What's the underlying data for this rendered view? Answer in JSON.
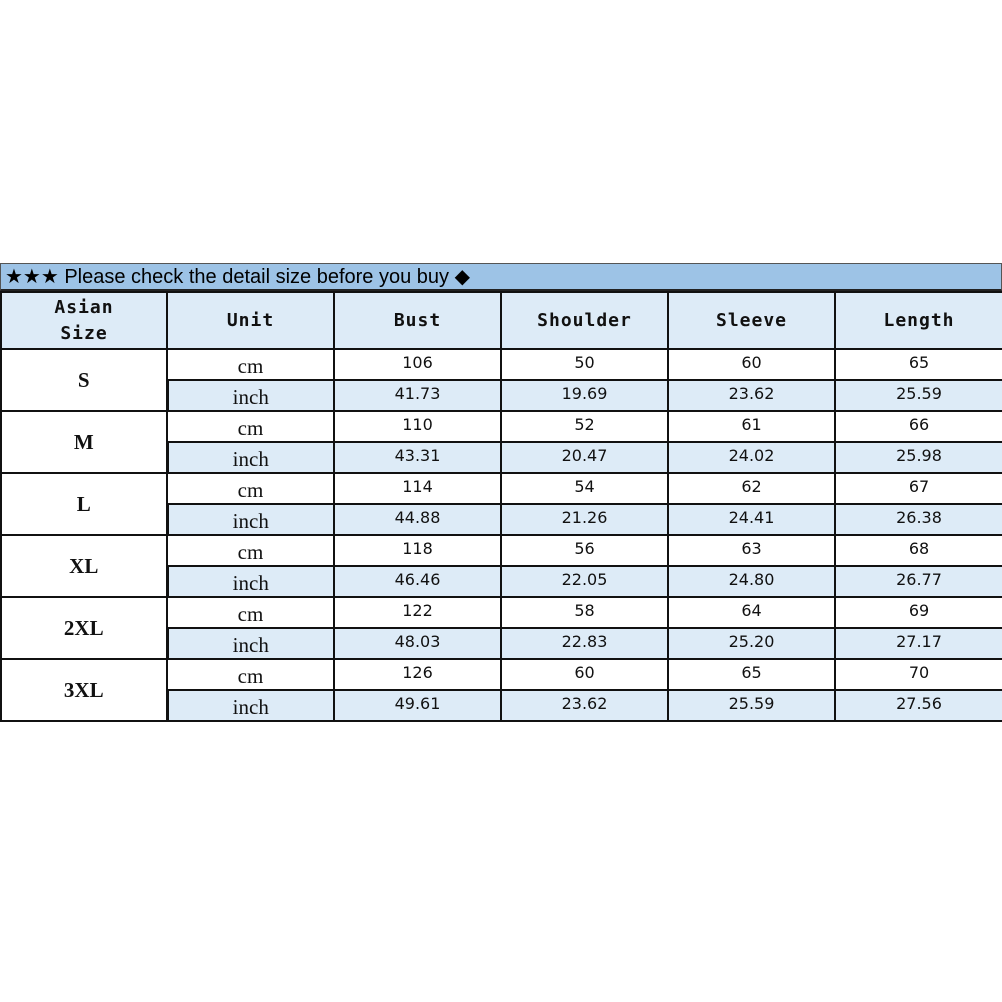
{
  "title": "★★★ Please check the detail size before you buy ◆",
  "headers": [
    "Asian\nSize",
    "Unit",
    "Bust",
    "Shoulder",
    "Sleeve",
    "Length"
  ],
  "units": {
    "cm": "cm",
    "inch": "inch"
  },
  "colors": {
    "title_bg": "#9dc3e6",
    "header_bg": "#ddebf7",
    "inch_row_bg": "#ddebf7"
  },
  "rows": [
    {
      "size": "S",
      "cm": [
        "106",
        "50",
        "60",
        "65"
      ],
      "inch": [
        "41.73",
        "19.69",
        "23.62",
        "25.59"
      ]
    },
    {
      "size": "M",
      "cm": [
        "110",
        "52",
        "61",
        "66"
      ],
      "inch": [
        "43.31",
        "20.47",
        "24.02",
        "25.98"
      ]
    },
    {
      "size": "L",
      "cm": [
        "114",
        "54",
        "62",
        "67"
      ],
      "inch": [
        "44.88",
        "21.26",
        "24.41",
        "26.38"
      ]
    },
    {
      "size": "XL",
      "cm": [
        "118",
        "56",
        "63",
        "68"
      ],
      "inch": [
        "46.46",
        "22.05",
        "24.80",
        "26.77"
      ]
    },
    {
      "size": "2XL",
      "cm": [
        "122",
        "58",
        "64",
        "69"
      ],
      "inch": [
        "48.03",
        "22.83",
        "25.20",
        "27.17"
      ]
    },
    {
      "size": "3XL",
      "cm": [
        "126",
        "60",
        "65",
        "70"
      ],
      "inch": [
        "49.61",
        "23.62",
        "25.59",
        "27.56"
      ]
    }
  ]
}
